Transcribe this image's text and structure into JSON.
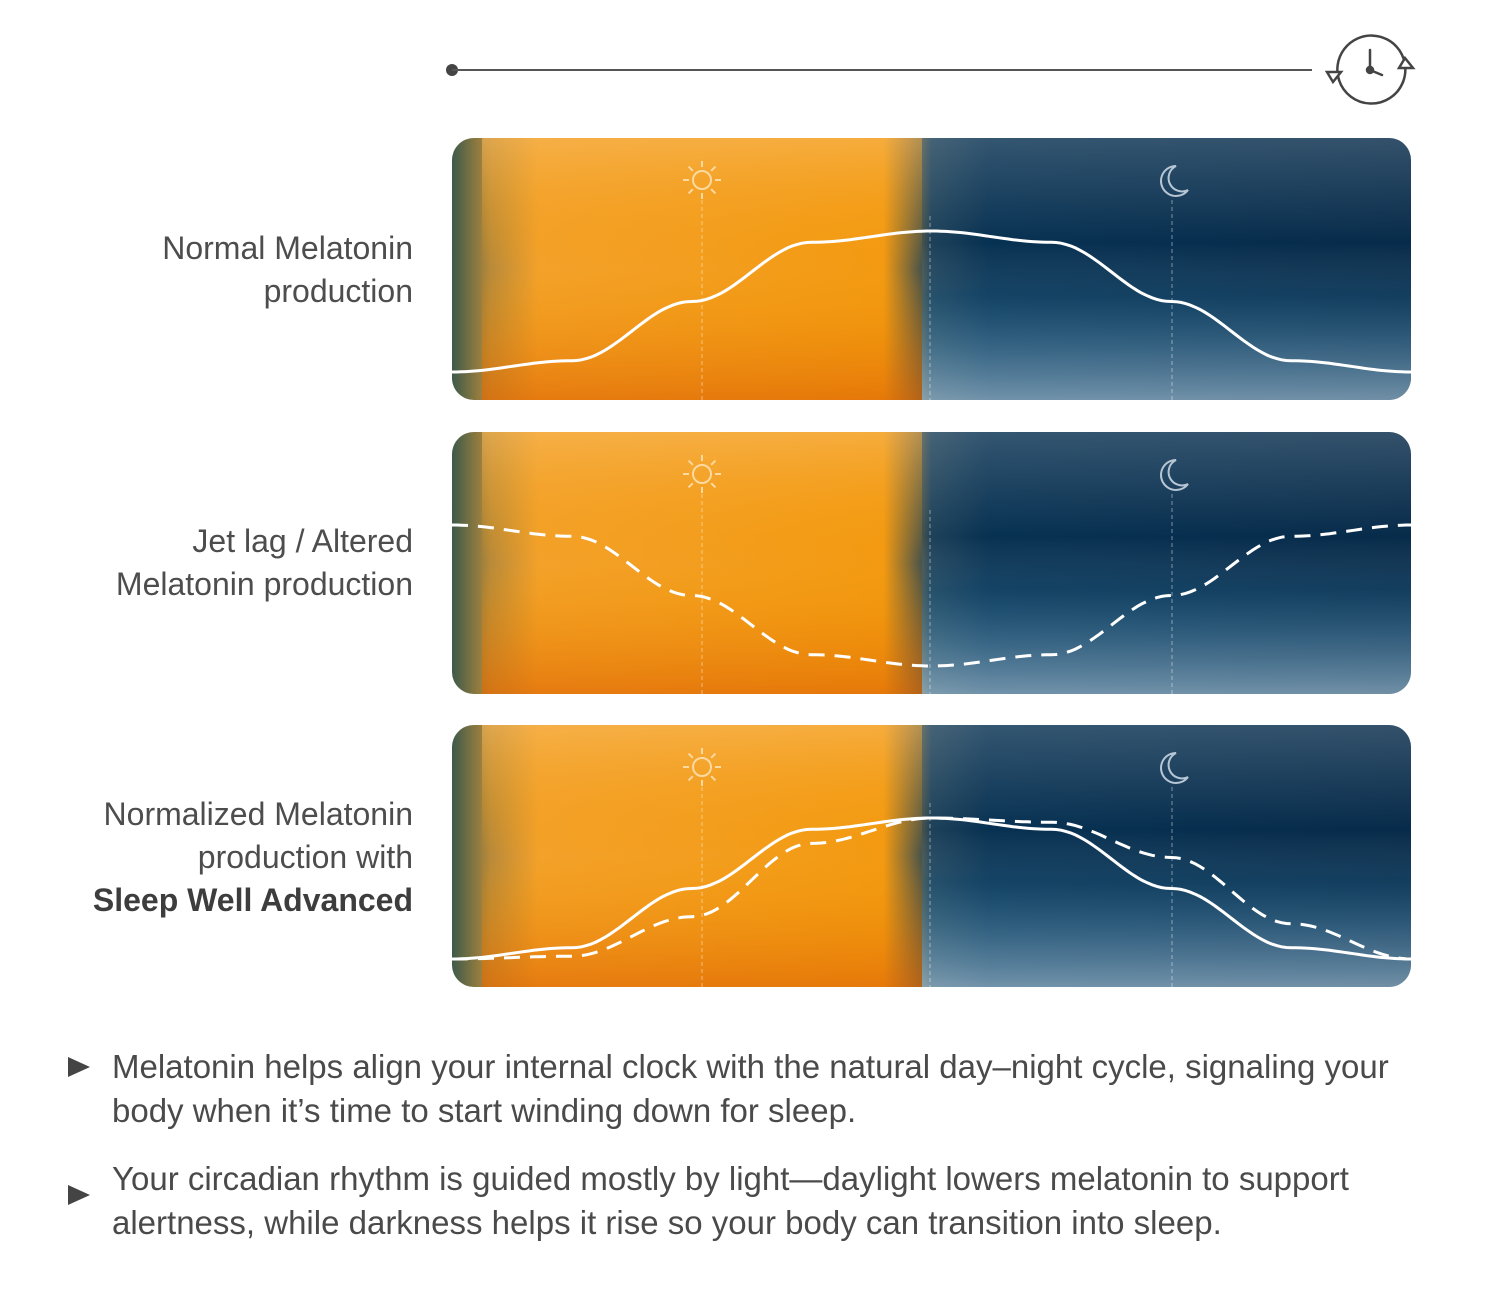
{
  "rows": [
    {
      "label_lines": [
        "Normal Melatonin",
        "production"
      ],
      "label_bold": ""
    },
    {
      "label_lines": [
        "Jet lag / Altered",
        "Melatonin production"
      ],
      "label_bold": ""
    },
    {
      "label_lines": [
        "Normalized Melatonin",
        "production with"
      ],
      "label_bold": "Sleep Well Advanced"
    }
  ],
  "panel_icons": {
    "day": "sun-icon",
    "night": "moon-icon"
  },
  "header_icon": "clock-cycle-icon",
  "colors": {
    "day_orange": "#f59a0a",
    "night_blue": "#0b3558",
    "curve": "#ffffff",
    "text": "#4a4a4a"
  },
  "bullets": [
    "Melatonin helps align your internal clock with the natural day–night cycle, signaling your body when it’s time to start winding down for sleep.",
    "Your circadian rhythm is guided mostly by light—daylight lowers melatonin to support alertness, while darkness helps it rise so your body can transition into sleep."
  ],
  "chart_data": {
    "type": "line",
    "x": [
      0,
      0.125,
      0.25,
      0.375,
      0.5,
      0.625,
      0.75,
      0.875,
      1
    ],
    "panels": [
      {
        "series": [
          {
            "style": "solid",
            "values": [
              0,
              0.08,
              0.5,
              0.92,
              1,
              0.92,
              0.5,
              0.08,
              0
            ]
          }
        ]
      },
      {
        "series": [
          {
            "style": "dashed",
            "values": [
              1,
              0.92,
              0.5,
              0.08,
              0,
              0.08,
              0.5,
              0.92,
              1
            ]
          }
        ]
      },
      {
        "series": [
          {
            "style": "solid",
            "values": [
              0,
              0.08,
              0.5,
              0.92,
              1,
              0.92,
              0.5,
              0.08,
              0
            ]
          },
          {
            "style": "dashed",
            "values": [
              0,
              0.02,
              0.3,
              0.82,
              1,
              0.97,
              0.72,
              0.25,
              0
            ]
          }
        ]
      }
    ]
  }
}
